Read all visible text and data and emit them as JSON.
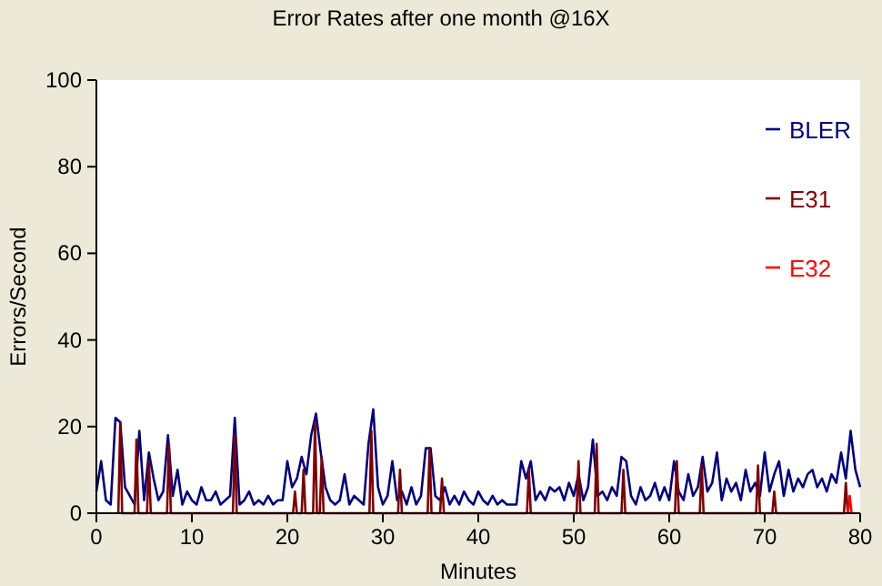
{
  "chart_data": {
    "type": "line",
    "title": "Error Rates after one month @16X",
    "xlabel": "Minutes",
    "ylabel": "Errors/Second",
    "xlim": [
      0,
      80
    ],
    "ylim": [
      0,
      100
    ],
    "xticks": [
      0,
      10,
      20,
      30,
      40,
      50,
      60,
      70,
      80
    ],
    "yticks": [
      0,
      20,
      40,
      60,
      80,
      100
    ],
    "grid": false,
    "legend": "top right",
    "marker": "none",
    "line_style": "solid",
    "series": [
      {
        "name": "BLER",
        "color": "#000080",
        "x": [
          0,
          0.5,
          1,
          1.5,
          2,
          2.5,
          3,
          3.5,
          4,
          4.5,
          5,
          5.5,
          6,
          6.5,
          7,
          7.5,
          8,
          8.5,
          9,
          9.5,
          10,
          10.5,
          11,
          11.5,
          12,
          12.5,
          13,
          13.5,
          14,
          14.5,
          15,
          15.5,
          16,
          16.5,
          17,
          17.5,
          18,
          18.5,
          19,
          19.5,
          20,
          20.5,
          21,
          21.5,
          22,
          22.5,
          23,
          23.5,
          24,
          24.5,
          25,
          25.5,
          26,
          26.5,
          27,
          27.5,
          28,
          28.5,
          29,
          29.5,
          30,
          30.5,
          31,
          31.5,
          32,
          32.5,
          33,
          33.5,
          34,
          34.5,
          35,
          35.5,
          36,
          36.5,
          37,
          37.5,
          38,
          38.5,
          39,
          39.5,
          40,
          40.5,
          41,
          41.5,
          42,
          42.5,
          43,
          43.5,
          44,
          44.5,
          45,
          45.5,
          46,
          46.5,
          47,
          47.5,
          48,
          48.5,
          49,
          49.5,
          50,
          50.5,
          51,
          51.5,
          52,
          52.5,
          53,
          53.5,
          54,
          54.5,
          55,
          55.5,
          56,
          56.5,
          57,
          57.5,
          58,
          58.5,
          59,
          59.5,
          60,
          60.5,
          61,
          61.5,
          62,
          62.5,
          63,
          63.5,
          64,
          64.5,
          65,
          65.5,
          66,
          66.5,
          67,
          67.5,
          68,
          68.5,
          69,
          69.5,
          70,
          70.5,
          71,
          71.5,
          72,
          72.5,
          73,
          73.5,
          74,
          74.5,
          75,
          75.5,
          76,
          76.5,
          77,
          77.5,
          78,
          78.5,
          79,
          79.5,
          80
        ],
        "values": [
          5,
          12,
          3,
          2,
          22,
          21,
          6,
          4,
          2,
          19,
          3,
          14,
          8,
          3,
          5,
          18,
          4,
          10,
          2,
          5,
          3,
          2,
          6,
          3,
          3,
          5,
          2,
          3,
          4,
          22,
          2,
          3,
          5,
          2,
          3,
          2,
          4,
          2,
          3,
          3,
          12,
          6,
          8,
          13,
          9,
          18,
          23,
          14,
          6,
          3,
          2,
          3,
          9,
          2,
          4,
          3,
          2,
          16,
          24,
          6,
          2,
          4,
          12,
          3,
          5,
          2,
          6,
          2,
          4,
          15,
          15,
          4,
          3,
          6,
          2,
          4,
          2,
          5,
          3,
          2,
          5,
          3,
          2,
          4,
          2,
          3,
          2,
          2,
          2,
          12,
          8,
          12,
          3,
          5,
          3,
          6,
          5,
          6,
          3,
          7,
          4,
          9,
          3,
          6,
          17,
          4,
          5,
          3,
          6,
          4,
          13,
          12,
          4,
          2,
          6,
          3,
          4,
          7,
          3,
          6,
          3,
          12,
          5,
          3,
          9,
          4,
          6,
          13,
          5,
          7,
          14,
          3,
          8,
          5,
          7,
          3,
          10,
          5,
          7,
          4,
          14,
          5,
          9,
          12,
          4,
          10,
          5,
          8,
          6,
          9,
          10,
          6,
          8,
          5,
          9,
          7,
          14,
          8,
          19,
          10,
          6
        ]
      },
      {
        "name": "E31",
        "color": "#800000",
        "x": [
          2.3,
          2.5,
          2.7,
          4.0,
          4.2,
          4.4,
          5.3,
          5.5,
          5.7,
          7.4,
          7.6,
          7.8,
          14.3,
          14.5,
          14.7,
          20.6,
          20.8,
          21.0,
          21.5,
          21.7,
          21.9,
          22.7,
          22.9,
          23.1,
          23.4,
          23.6,
          23.8,
          28.6,
          28.8,
          29.0,
          31.6,
          31.8,
          32.0,
          34.7,
          34.9,
          35.1,
          36.0,
          36.2,
          36.4,
          45.1,
          45.3,
          45.5,
          50.3,
          50.5,
          50.7,
          52.2,
          52.4,
          52.6,
          55.0,
          55.2,
          55.4,
          60.6,
          60.8,
          61.0,
          63.2,
          63.4,
          63.6,
          69.1,
          69.3,
          69.5,
          70.8,
          71.0,
          71.2,
          78.3,
          78.5,
          78.7
        ],
        "values": [
          0,
          21,
          0,
          0,
          17,
          0,
          0,
          12,
          0,
          0,
          16,
          0,
          0,
          18,
          0,
          0,
          5,
          0,
          0,
          10,
          0,
          0,
          21,
          0,
          0,
          13,
          0,
          0,
          19,
          0,
          0,
          10,
          0,
          0,
          15,
          0,
          0,
          8,
          0,
          0,
          10,
          0,
          0,
          12,
          0,
          0,
          16,
          0,
          0,
          10,
          0,
          0,
          12,
          0,
          0,
          11,
          0,
          0,
          11,
          0,
          0,
          5,
          0,
          0,
          7,
          0
        ]
      },
      {
        "name": "E32",
        "color": "#ff0000",
        "x": [
          78.7,
          78.9,
          79.1
        ],
        "values": [
          0,
          4,
          0
        ]
      }
    ]
  }
}
